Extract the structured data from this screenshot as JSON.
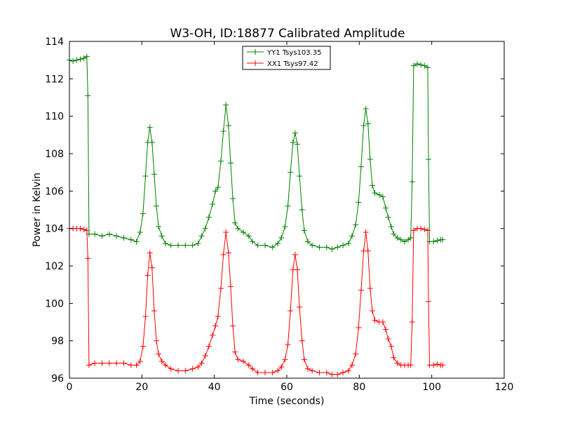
{
  "chart_data": {
    "type": "line",
    "title": "W3-OH, ID:18877 Calibrated Amplitude",
    "xlabel": "Time (seconds)",
    "ylabel": "Power in Kelvin",
    "xlim": [
      0,
      120
    ],
    "ylim": [
      96,
      114
    ],
    "xticks": [
      "0",
      "20",
      "40",
      "60",
      "80",
      "100",
      "120"
    ],
    "yticks": [
      "96",
      "98",
      "100",
      "102",
      "104",
      "106",
      "108",
      "110",
      "112",
      "114"
    ],
    "grid": false,
    "legend": "upper-center",
    "marker": "+",
    "series": [
      {
        "name": "YY1 Tsys103.35",
        "color": "#008000",
        "points": [
          [
            0,
            113.0
          ],
          [
            1,
            112.95
          ],
          [
            2,
            113.0
          ],
          [
            3,
            113.05
          ],
          [
            4,
            113.1
          ],
          [
            4.8,
            113.2
          ],
          [
            5.1,
            111.1
          ],
          [
            5.4,
            103.7
          ],
          [
            7,
            103.7
          ],
          [
            9,
            103.6
          ],
          [
            11,
            103.7
          ],
          [
            13,
            103.6
          ],
          [
            15,
            103.5
          ],
          [
            17,
            103.4
          ],
          [
            18.5,
            103.3
          ],
          [
            19.5,
            103.8
          ],
          [
            20.3,
            104.8
          ],
          [
            21,
            106.8
          ],
          [
            21.6,
            108.6
          ],
          [
            22.2,
            109.4
          ],
          [
            22.8,
            108.6
          ],
          [
            23.4,
            106.9
          ],
          [
            24,
            105.2
          ],
          [
            24.6,
            104.1
          ],
          [
            25.5,
            103.6
          ],
          [
            26.5,
            103.2
          ],
          [
            28,
            103.1
          ],
          [
            30,
            103.1
          ],
          [
            32,
            103.1
          ],
          [
            34,
            103.1
          ],
          [
            35.5,
            103.2
          ],
          [
            36.5,
            103.6
          ],
          [
            37.5,
            104.0
          ],
          [
            38.5,
            104.6
          ],
          [
            39.5,
            105.3
          ],
          [
            40.3,
            106.0
          ],
          [
            41,
            106.2
          ],
          [
            41.8,
            107.6
          ],
          [
            42.5,
            109.2
          ],
          [
            43.2,
            110.6
          ],
          [
            43.9,
            109.5
          ],
          [
            44.5,
            107.5
          ],
          [
            45.1,
            105.6
          ],
          [
            45.7,
            104.3
          ],
          [
            46.5,
            104.0
          ],
          [
            48,
            103.8
          ],
          [
            49.5,
            103.6
          ],
          [
            50.5,
            103.3
          ],
          [
            52,
            103.1
          ],
          [
            54,
            103.1
          ],
          [
            56,
            103.0
          ],
          [
            57.5,
            103.2
          ],
          [
            58.5,
            103.5
          ],
          [
            59.5,
            104.1
          ],
          [
            60.3,
            105.2
          ],
          [
            61,
            107.0
          ],
          [
            61.7,
            108.6
          ],
          [
            62.3,
            109.1
          ],
          [
            62.9,
            108.5
          ],
          [
            63.5,
            106.8
          ],
          [
            64.2,
            105.0
          ],
          [
            64.8,
            103.9
          ],
          [
            65.8,
            103.3
          ],
          [
            67,
            103.1
          ],
          [
            69,
            103.0
          ],
          [
            71,
            103.0
          ],
          [
            72.5,
            102.9
          ],
          [
            74,
            103.0
          ],
          [
            75.5,
            103.1
          ],
          [
            77,
            103.2
          ],
          [
            78,
            103.6
          ],
          [
            79,
            104.2
          ],
          [
            79.8,
            105.4
          ],
          [
            80.5,
            107.3
          ],
          [
            81.2,
            109.5
          ],
          [
            81.8,
            110.4
          ],
          [
            82.4,
            109.6
          ],
          [
            83,
            107.7
          ],
          [
            83.6,
            106.3
          ],
          [
            84.3,
            105.9
          ],
          [
            85.5,
            105.8
          ],
          [
            86.5,
            105.7
          ],
          [
            87.3,
            105.1
          ],
          [
            88,
            104.6
          ],
          [
            88.8,
            104.1
          ],
          [
            89.5,
            103.7
          ],
          [
            90.5,
            103.5
          ],
          [
            91.5,
            103.4
          ],
          [
            92.5,
            103.3
          ],
          [
            93.5,
            103.4
          ],
          [
            94.2,
            103.5
          ],
          [
            94.6,
            106.5
          ],
          [
            95,
            112.7
          ],
          [
            96,
            112.8
          ],
          [
            97,
            112.75
          ],
          [
            98,
            112.7
          ],
          [
            98.9,
            112.6
          ],
          [
            99.1,
            107.7
          ],
          [
            99.4,
            103.3
          ],
          [
            100.5,
            103.3
          ],
          [
            101.5,
            103.35
          ],
          [
            102.5,
            103.4
          ],
          [
            103,
            103.4
          ]
        ]
      },
      {
        "name": "XX1 Tsys97.42",
        "color": "#ff0000",
        "points": [
          [
            0,
            104.0
          ],
          [
            1,
            104.0
          ],
          [
            2,
            104.0
          ],
          [
            3,
            104.0
          ],
          [
            4,
            103.95
          ],
          [
            4.8,
            103.9
          ],
          [
            5.1,
            102.4
          ],
          [
            5.4,
            96.7
          ],
          [
            7,
            96.8
          ],
          [
            9,
            96.8
          ],
          [
            11,
            96.8
          ],
          [
            13,
            96.8
          ],
          [
            15,
            96.8
          ],
          [
            17,
            96.7
          ],
          [
            18.5,
            96.7
          ],
          [
            19.5,
            96.9
          ],
          [
            20.3,
            97.7
          ],
          [
            21,
            99.3
          ],
          [
            21.6,
            101.5
          ],
          [
            22.2,
            102.7
          ],
          [
            22.8,
            101.9
          ],
          [
            23.4,
            99.6
          ],
          [
            24,
            98.0
          ],
          [
            24.6,
            97.3
          ],
          [
            25.5,
            96.9
          ],
          [
            26.5,
            96.7
          ],
          [
            28,
            96.5
          ],
          [
            30,
            96.4
          ],
          [
            32,
            96.4
          ],
          [
            34,
            96.5
          ],
          [
            35.5,
            96.6
          ],
          [
            36.5,
            96.8
          ],
          [
            37.5,
            97.2
          ],
          [
            38.5,
            97.7
          ],
          [
            39.5,
            98.3
          ],
          [
            40.3,
            98.8
          ],
          [
            41,
            99.3
          ],
          [
            41.8,
            100.8
          ],
          [
            42.5,
            102.6
          ],
          [
            43.2,
            103.8
          ],
          [
            43.9,
            102.7
          ],
          [
            44.5,
            100.9
          ],
          [
            45.1,
            98.8
          ],
          [
            45.7,
            97.4
          ],
          [
            46.5,
            97.0
          ],
          [
            48,
            96.9
          ],
          [
            49.5,
            96.7
          ],
          [
            50.5,
            96.5
          ],
          [
            52,
            96.3
          ],
          [
            54,
            96.3
          ],
          [
            56,
            96.3
          ],
          [
            57.5,
            96.4
          ],
          [
            58.5,
            96.6
          ],
          [
            59.5,
            97.0
          ],
          [
            60.3,
            97.8
          ],
          [
            61,
            99.6
          ],
          [
            61.7,
            101.8
          ],
          [
            62.3,
            102.6
          ],
          [
            62.9,
            101.8
          ],
          [
            63.5,
            99.8
          ],
          [
            64.2,
            98.0
          ],
          [
            64.8,
            97.0
          ],
          [
            65.8,
            96.5
          ],
          [
            67,
            96.4
          ],
          [
            69,
            96.3
          ],
          [
            71,
            96.3
          ],
          [
            72.5,
            96.2
          ],
          [
            74,
            96.2
          ],
          [
            75.5,
            96.3
          ],
          [
            77,
            96.4
          ],
          [
            78,
            96.7
          ],
          [
            79,
            97.3
          ],
          [
            79.8,
            98.7
          ],
          [
            80.5,
            100.7
          ],
          [
            81.2,
            102.8
          ],
          [
            81.8,
            103.8
          ],
          [
            82.4,
            102.8
          ],
          [
            83,
            100.8
          ],
          [
            83.6,
            99.6
          ],
          [
            84.3,
            99.1
          ],
          [
            85.5,
            99.0
          ],
          [
            86.5,
            99.0
          ],
          [
            87.3,
            98.6
          ],
          [
            88,
            98.1
          ],
          [
            88.8,
            97.7
          ],
          [
            89.5,
            97.1
          ],
          [
            90.5,
            96.8
          ],
          [
            91.5,
            96.7
          ],
          [
            92.5,
            96.7
          ],
          [
            93.5,
            96.7
          ],
          [
            94.2,
            96.7
          ],
          [
            94.6,
            99.0
          ],
          [
            95,
            103.9
          ],
          [
            96,
            104.0
          ],
          [
            97,
            104.0
          ],
          [
            98,
            103.95
          ],
          [
            98.9,
            103.9
          ],
          [
            99.1,
            100.1
          ],
          [
            99.4,
            96.7
          ],
          [
            100.5,
            96.7
          ],
          [
            101.5,
            96.75
          ],
          [
            102.5,
            96.7
          ],
          [
            103,
            96.7
          ]
        ]
      }
    ]
  }
}
